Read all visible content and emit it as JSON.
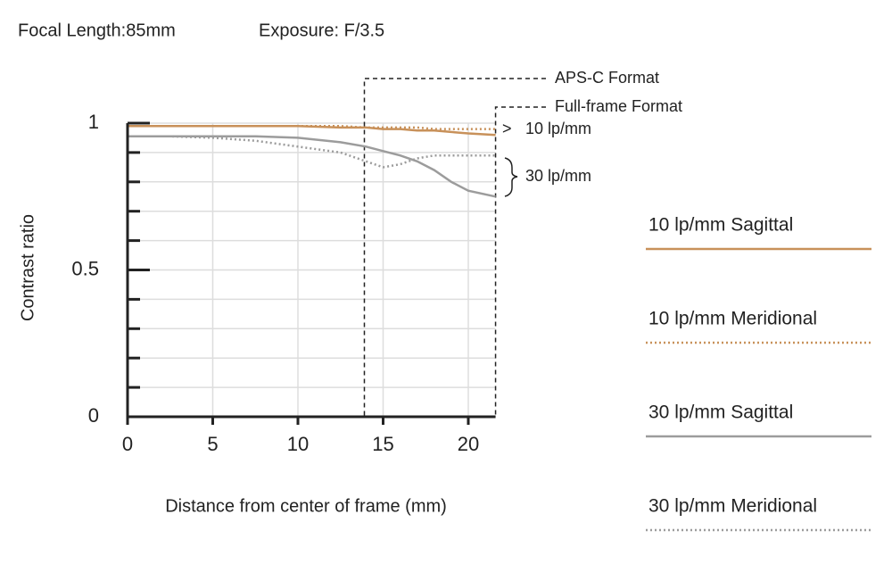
{
  "chart_data": {
    "type": "line",
    "title": "Focal Length:85mm",
    "subtitle": "Exposure: F/3.5",
    "x_label": "Distance from center of frame (mm)",
    "y_label": "Contrast ratio",
    "xlim": [
      0,
      21.6
    ],
    "ylim": [
      0,
      1
    ],
    "xticks": [
      0,
      5,
      10,
      15,
      20
    ],
    "yticks": [
      0,
      0.5,
      1
    ],
    "yminorticks": [
      0.1,
      0.2,
      0.3,
      0.4,
      0.6,
      0.7,
      0.8,
      0.9
    ],
    "grid": true,
    "x": [
      0,
      2.5,
      5,
      7.5,
      10,
      12.5,
      14,
      15,
      16,
      17,
      18,
      19,
      20,
      21.6
    ],
    "series": [
      {
        "name": "10 lp/mm Sagittal",
        "color": "#c8915a",
        "style": "solid",
        "values": [
          0.99,
          0.99,
          0.99,
          0.99,
          0.99,
          0.985,
          0.985,
          0.98,
          0.98,
          0.975,
          0.975,
          0.97,
          0.965,
          0.96
        ]
      },
      {
        "name": "10 lp/mm Meridional",
        "color": "#c8915a",
        "style": "dotted",
        "values": [
          0.99,
          0.99,
          0.99,
          0.99,
          0.99,
          0.99,
          0.985,
          0.985,
          0.985,
          0.985,
          0.98,
          0.98,
          0.98,
          0.98
        ]
      },
      {
        "name": "30 lp/mm Sagittal",
        "color": "#9c9c9c",
        "style": "solid",
        "values": [
          0.955,
          0.955,
          0.955,
          0.955,
          0.95,
          0.935,
          0.92,
          0.905,
          0.89,
          0.87,
          0.84,
          0.8,
          0.77,
          0.75
        ]
      },
      {
        "name": "30 lp/mm Meridional",
        "color": "#9c9c9c",
        "style": "dotted",
        "values": [
          0.955,
          0.955,
          0.95,
          0.94,
          0.92,
          0.9,
          0.87,
          0.85,
          0.86,
          0.88,
          0.89,
          0.89,
          0.89,
          0.89
        ]
      }
    ],
    "format_markers": [
      {
        "label": "APS-C Format",
        "x": 13.9
      },
      {
        "label": "Full-frame Format",
        "x": 21.6
      }
    ],
    "annotations": [
      "10 lp/mm",
      "30 lp/mm"
    ]
  }
}
